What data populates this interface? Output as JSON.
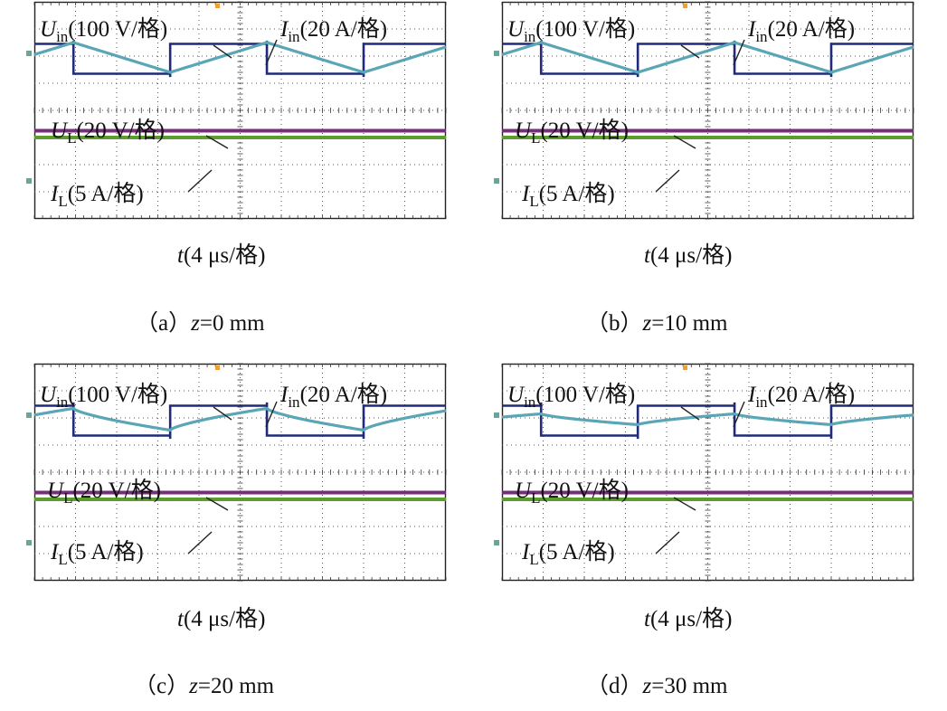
{
  "chart_data": [
    {
      "type": "line",
      "panel": "a",
      "caption": {
        "prefix": "（a）",
        "var": "z",
        "rest": "=0 mm"
      },
      "xlabel": {
        "var": "t",
        "rest": "(4 μs/格)"
      },
      "labels": {
        "uin": {
          "sym": "U",
          "sub": "in",
          "scale": "(100 V/格)"
        },
        "iin": {
          "sym": "I",
          "sub": "in",
          "scale": "(20 A/格)"
        },
        "ul": {
          "sym": "U",
          "sub": "L",
          "scale": "(20 V/格)"
        },
        "il": {
          "sym": "I",
          "sub": "L",
          "scale": "(5 A/格)"
        }
      },
      "grid": {
        "x_div": 10,
        "y_div": 8
      },
      "square_wave": {
        "period_div": 4.7,
        "high_div": 1.55,
        "low_div": 2.65,
        "phase_div": 0.95
      },
      "input_current": {
        "amplitude_div": 0.55,
        "center_div": 2.05,
        "shape": "triangle"
      },
      "ul_level_div": 4.75,
      "il_level_div": 5.0
    },
    {
      "type": "line",
      "panel": "b",
      "caption": {
        "prefix": "（b）",
        "var": "z",
        "rest": "=10 mm"
      },
      "xlabel": {
        "var": "t",
        "rest": "(4 μs/格)"
      },
      "labels": {
        "uin": {
          "sym": "U",
          "sub": "in",
          "scale": "(100 V/格)"
        },
        "iin": {
          "sym": "I",
          "sub": "in",
          "scale": "(20 A/格)"
        },
        "ul": {
          "sym": "U",
          "sub": "L",
          "scale": "(20 V/格)"
        },
        "il": {
          "sym": "I",
          "sub": "L",
          "scale": "(5 A/格)"
        }
      },
      "grid": {
        "x_div": 10,
        "y_div": 8
      },
      "square_wave": {
        "period_div": 4.7,
        "high_div": 1.55,
        "low_div": 2.65,
        "phase_div": 0.95
      },
      "input_current": {
        "amplitude_div": 0.55,
        "center_div": 2.05,
        "shape": "triangle"
      },
      "ul_level_div": 4.75,
      "il_level_div": 5.0
    },
    {
      "type": "line",
      "panel": "c",
      "caption": {
        "prefix": "（c）",
        "var": "z",
        "rest": "=20 mm"
      },
      "xlabel": {
        "var": "t",
        "rest": "(4 μs/格)"
      },
      "labels": {
        "uin": {
          "sym": "U",
          "sub": "in",
          "scale": "(100 V/格)"
        },
        "iin": {
          "sym": "I",
          "sub": "in",
          "scale": "(20 A/格)"
        },
        "ul": {
          "sym": "U",
          "sub": "L",
          "scale": "(20 V/格)"
        },
        "il": {
          "sym": "I",
          "sub": "L",
          "scale": "(5 A/格)"
        }
      },
      "grid": {
        "x_div": 10,
        "y_div": 8
      },
      "square_wave": {
        "period_div": 4.7,
        "high_div": 1.55,
        "low_div": 2.65,
        "phase_div": 0.95
      },
      "input_current": {
        "amplitude_div": 0.4,
        "center_div": 2.05,
        "shape": "arc"
      },
      "ul_level_div": 4.75,
      "il_level_div": 5.0
    },
    {
      "type": "line",
      "panel": "d",
      "caption": {
        "prefix": "（d）",
        "var": "z",
        "rest": "=30 mm"
      },
      "xlabel": {
        "var": "t",
        "rest": "(4 μs/格)"
      },
      "labels": {
        "uin": {
          "sym": "U",
          "sub": "in",
          "scale": "(100 V/格)"
        },
        "iin": {
          "sym": "I",
          "sub": "in",
          "scale": "(20 A/格)"
        },
        "ul": {
          "sym": "U",
          "sub": "L",
          "scale": "(20 V/格)"
        },
        "il": {
          "sym": "I",
          "sub": "L",
          "scale": "(5 A/格)"
        }
      },
      "grid": {
        "x_div": 10,
        "y_div": 8
      },
      "square_wave": {
        "period_div": 4.7,
        "high_div": 1.55,
        "low_div": 2.65,
        "phase_div": 0.95
      },
      "input_current": {
        "amplitude_div": 0.2,
        "center_div": 2.05,
        "shape": "arc"
      },
      "ul_level_div": 4.75,
      "il_level_div": 5.0
    }
  ],
  "colors": {
    "uin": "#1f2a78",
    "iin": "#5aa6b6",
    "ul": "#7a2c7c",
    "il": "#5c9b2e",
    "grid": "#555555",
    "marker_left": "#6aa59a",
    "marker_top": "#f0a030"
  }
}
